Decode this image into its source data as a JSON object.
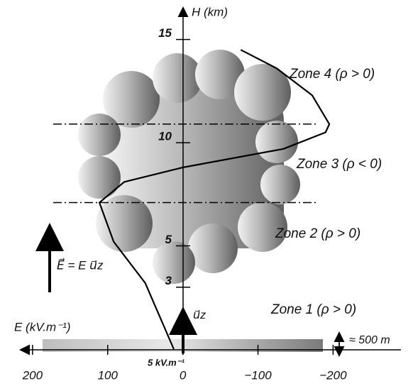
{
  "chart_data": {
    "type": "line",
    "y_label": "H (km)",
    "x_label": "E (kV.m⁻¹)",
    "x": [
      12,
      50,
      92,
      111,
      78,
      0,
      -134,
      -190,
      -195,
      -172,
      -125,
      -77
    ],
    "values": [
      0,
      3.2,
      5.2,
      7.1,
      8.1,
      8.8,
      9.7,
      10.5,
      10.9,
      12.3,
      13.6,
      14.5
    ],
    "color": "#000000",
    "xlim": [
      215,
      -295
    ],
    "ylim": [
      0,
      16.5
    ],
    "xticks": [
      200,
      100,
      0,
      {
        "value": -100,
        "label": "−100"
      },
      {
        "value": -200,
        "label": "−200"
      }
    ],
    "yticks": [
      3,
      5,
      10,
      15
    ],
    "hlines": [
      10.9,
      7.1
    ],
    "annotations": [
      "Zone 4 (ρ > 0)",
      "Zone 3 (ρ < 0)",
      "Zone 2 (ρ > 0)",
      "Zone 1 (ρ > 0)",
      "E⃗ = E u⃗z",
      "u⃗z",
      "5 kV.m⁻¹",
      "≈ 500 m"
    ]
  }
}
